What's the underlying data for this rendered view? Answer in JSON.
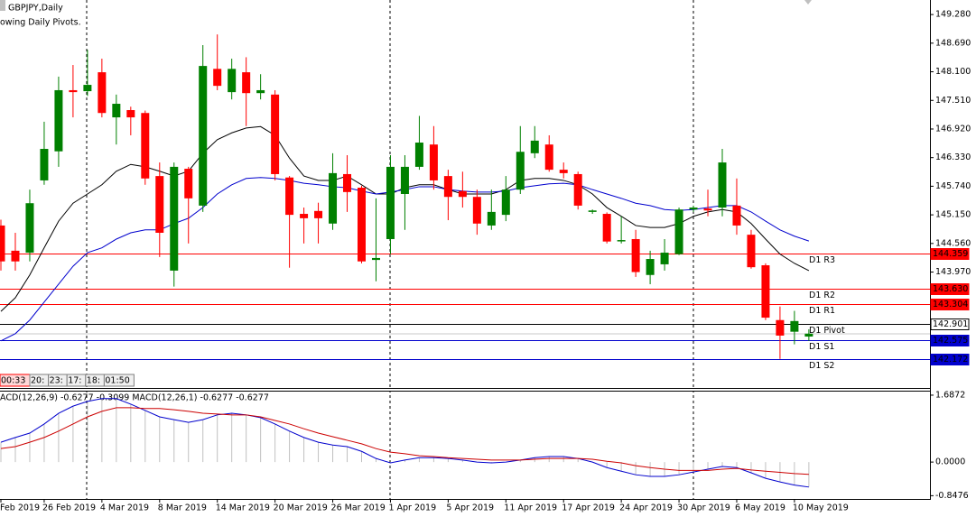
{
  "chart_data": {
    "type": "candlestick",
    "symbol_label": "GBPJPY,Daily",
    "indicator_note": "owing Daily Pivots.",
    "timer": [
      "00:33",
      "20:",
      "23:",
      "17:",
      "18:",
      "01:50"
    ],
    "categories": [
      "Feb 2019",
      null,
      null,
      "26 Feb 2019",
      null,
      null,
      null,
      "4 Mar 2019",
      null,
      null,
      null,
      "8 Mar 2019",
      null,
      null,
      null,
      "14 Mar 2019",
      null,
      null,
      null,
      "20 Mar 2019",
      null,
      null,
      null,
      "26 Mar 2019",
      null,
      null,
      null,
      "1 Apr 2019",
      null,
      null,
      null,
      "5 Apr 2019",
      null,
      null,
      null,
      "11 Apr 2019",
      null,
      null,
      null,
      "17 Apr 2019",
      null,
      null,
      null,
      "24 Apr 2019",
      null,
      null,
      null,
      "30 Apr 2019",
      null,
      null,
      null,
      "6 May 2019",
      null,
      null,
      null,
      "10 May 2019",
      null
    ],
    "open": [
      144.93,
      144.41,
      144.37,
      145.86,
      146.46,
      147.72,
      147.7,
      148.09,
      147.16,
      147.31,
      147.25,
      145.95,
      144.0,
      146.1,
      145.34,
      148.16,
      147.68,
      148.09,
      147.66,
      147.63,
      145.92,
      145.17,
      145.23,
      144.97,
      145.99,
      145.71,
      144.22,
      144.65,
      145.58,
      146.14,
      146.6,
      145.95,
      145.64,
      145.52,
      144.93,
      145.15,
      145.67,
      146.42,
      146.6,
      146.08,
      145.99,
      145.21,
      145.17,
      144.61,
      144.65,
      143.91,
      144.13,
      144.34,
      145.26,
      145.28,
      145.3,
      145.34,
      144.74,
      144.11,
      142.98,
      142.74,
      142.64
    ],
    "high": [
      145.05,
      144.78,
      145.67,
      147.07,
      148.0,
      148.24,
      148.55,
      148.37,
      147.63,
      147.38,
      147.3,
      146.23,
      146.23,
      146.14,
      148.65,
      148.87,
      148.37,
      148.4,
      148.05,
      147.72,
      145.95,
      145.3,
      145.4,
      146.42,
      146.38,
      145.75,
      145.49,
      146.38,
      146.38,
      147.19,
      146.98,
      146.08,
      146.04,
      145.67,
      145.67,
      145.95,
      146.98,
      146.98,
      146.79,
      146.23,
      146.04,
      145.26,
      145.2,
      145.12,
      144.84,
      144.41,
      144.65,
      145.3,
      145.34,
      145.67,
      146.51,
      145.9,
      144.84,
      144.15,
      143.26,
      143.17,
      142.79
    ],
    "low": [
      144.0,
      144.0,
      144.19,
      145.77,
      146.14,
      147.16,
      147.6,
      147.16,
      146.6,
      146.79,
      145.77,
      144.28,
      143.67,
      144.56,
      145.21,
      147.72,
      147.53,
      146.98,
      147.53,
      145.86,
      144.06,
      144.56,
      144.56,
      144.84,
      145.21,
      144.15,
      143.78,
      144.34,
      144.84,
      146.08,
      145.67,
      145.04,
      145.3,
      144.74,
      144.84,
      145.02,
      145.58,
      146.32,
      146.04,
      145.9,
      145.26,
      145.17,
      144.56,
      144.56,
      143.87,
      143.72,
      144.0,
      144.32,
      145.21,
      145.12,
      145.12,
      144.74,
      144.04,
      142.98,
      142.18,
      142.48,
      142.55
    ],
    "close": [
      144.19,
      144.19,
      145.39,
      146.51,
      147.72,
      147.68,
      147.83,
      147.25,
      147.44,
      147.16,
      145.9,
      144.78,
      146.14,
      145.49,
      148.22,
      147.81,
      148.16,
      147.66,
      147.72,
      145.99,
      145.15,
      145.08,
      145.08,
      146.01,
      145.62,
      144.19,
      144.26,
      146.14,
      146.14,
      146.64,
      145.86,
      145.52,
      145.52,
      144.97,
      145.21,
      145.67,
      146.45,
      146.68,
      146.08,
      146.01,
      145.34,
      145.24,
      144.6,
      144.63,
      143.97,
      144.24,
      144.37,
      145.26,
      145.3,
      145.24,
      146.23,
      144.93,
      144.07,
      143.03,
      142.66,
      142.96,
      142.7
    ],
    "up_color": "#008000",
    "down_color": "#ff0000",
    "ylim": [
      141.58,
      149.58
    ],
    "yticks": [
      {
        "value": 149.28,
        "label": "149.280"
      },
      {
        "value": 148.69,
        "label": "148.690"
      },
      {
        "value": 148.1,
        "label": "148.100"
      },
      {
        "value": 147.51,
        "label": "147.510"
      },
      {
        "value": 146.92,
        "label": "146.920"
      },
      {
        "value": 146.33,
        "label": "146.330"
      },
      {
        "value": 145.74,
        "label": "145.740"
      },
      {
        "value": 145.15,
        "label": "145.150"
      },
      {
        "value": 144.56,
        "label": "144.560"
      },
      {
        "value": 143.97,
        "label": "143.970"
      }
    ],
    "series": [
      {
        "color": "#000000",
        "values": [
          143.16,
          143.44,
          143.91,
          144.47,
          145.02,
          145.39,
          145.58,
          145.77,
          146.05,
          146.19,
          146.14,
          146.05,
          145.95,
          146.05,
          146.42,
          146.7,
          146.84,
          146.94,
          146.97,
          146.79,
          146.32,
          145.95,
          145.86,
          145.86,
          145.95,
          145.77,
          145.58,
          145.58,
          145.71,
          145.77,
          145.77,
          145.67,
          145.58,
          145.58,
          145.58,
          145.67,
          145.86,
          145.9,
          145.9,
          145.86,
          145.77,
          145.58,
          145.3,
          145.12,
          144.93,
          144.89,
          144.89,
          144.97,
          145.12,
          145.21,
          145.26,
          145.21,
          144.97,
          144.65,
          144.34,
          144.15,
          144.0
        ]
      },
      {
        "color": "#0000cd",
        "values": [
          142.55,
          142.7,
          142.98,
          143.35,
          143.72,
          144.09,
          144.37,
          144.47,
          144.65,
          144.78,
          144.84,
          144.84,
          144.97,
          145.08,
          145.3,
          145.58,
          145.77,
          145.9,
          145.92,
          145.9,
          145.86,
          145.8,
          145.77,
          145.73,
          145.71,
          145.64,
          145.58,
          145.62,
          145.67,
          145.73,
          145.73,
          145.67,
          145.64,
          145.62,
          145.62,
          145.64,
          145.71,
          145.75,
          145.79,
          145.8,
          145.77,
          145.67,
          145.58,
          145.49,
          145.39,
          145.34,
          145.26,
          145.24,
          145.26,
          145.3,
          145.34,
          145.34,
          145.21,
          145.02,
          144.84,
          144.71,
          144.61
        ]
      }
    ],
    "pivots": [
      {
        "name": "D1 R3",
        "value": 144.359,
        "color": "#ff0000"
      },
      {
        "name": "D1 R2",
        "value": 143.63,
        "label": "143.630",
        "color": "#ff0000"
      },
      {
        "name": "D1 R1",
        "value": 143.304,
        "color": "#ff0000"
      },
      {
        "name": "D1 Pivot",
        "value": 142.901,
        "color": "#000000"
      },
      {
        "name": "D1 S1",
        "value": 142.575,
        "color": "#0000cd"
      },
      {
        "name": "D1 S2",
        "value": 142.172,
        "color": "#0000cd"
      }
    ],
    "macd": {
      "label": "ACD(12,26,9) -0.6277 -0.3099 MACD(12,26,1) -0.6277 -0.6277",
      "ylim": [
        -0.93,
        1.8
      ],
      "yticks": [
        1.6872,
        {
          "value": 0,
          "label": "0.0000"
        },
        -0.8476
      ],
      "histogram_color": "#c0c0c0",
      "macd_color": "#0000cd",
      "signal_color": "#cc0000",
      "macd_values": [
        0.5,
        0.62,
        0.73,
        0.96,
        1.23,
        1.41,
        1.53,
        1.6,
        1.6,
        1.46,
        1.3,
        1.14,
        1.07,
        1.0,
        1.07,
        1.19,
        1.23,
        1.19,
        1.12,
        0.96,
        0.78,
        0.62,
        0.5,
        0.43,
        0.39,
        0.27,
        0.09,
        -0.02,
        0.05,
        0.11,
        0.11,
        0.09,
        0.05,
        0.0,
        -0.02,
        0.0,
        0.05,
        0.11,
        0.14,
        0.14,
        0.09,
        0.0,
        -0.14,
        -0.23,
        -0.32,
        -0.36,
        -0.36,
        -0.32,
        -0.25,
        -0.18,
        -0.11,
        -0.14,
        -0.27,
        -0.41,
        -0.5,
        -0.58,
        -0.63
      ],
      "signal_values": [
        0.34,
        0.39,
        0.5,
        0.62,
        0.78,
        0.96,
        1.14,
        1.28,
        1.37,
        1.37,
        1.35,
        1.35,
        1.32,
        1.28,
        1.23,
        1.21,
        1.19,
        1.19,
        1.14,
        1.05,
        0.96,
        0.84,
        0.73,
        0.64,
        0.55,
        0.46,
        0.34,
        0.25,
        0.21,
        0.16,
        0.14,
        0.11,
        0.09,
        0.07,
        0.05,
        0.05,
        0.05,
        0.07,
        0.09,
        0.09,
        0.09,
        0.07,
        0.02,
        -0.02,
        -0.09,
        -0.14,
        -0.18,
        -0.21,
        -0.21,
        -0.21,
        -0.18,
        -0.16,
        -0.2,
        -0.23,
        -0.26,
        -0.29,
        -0.31
      ]
    }
  }
}
